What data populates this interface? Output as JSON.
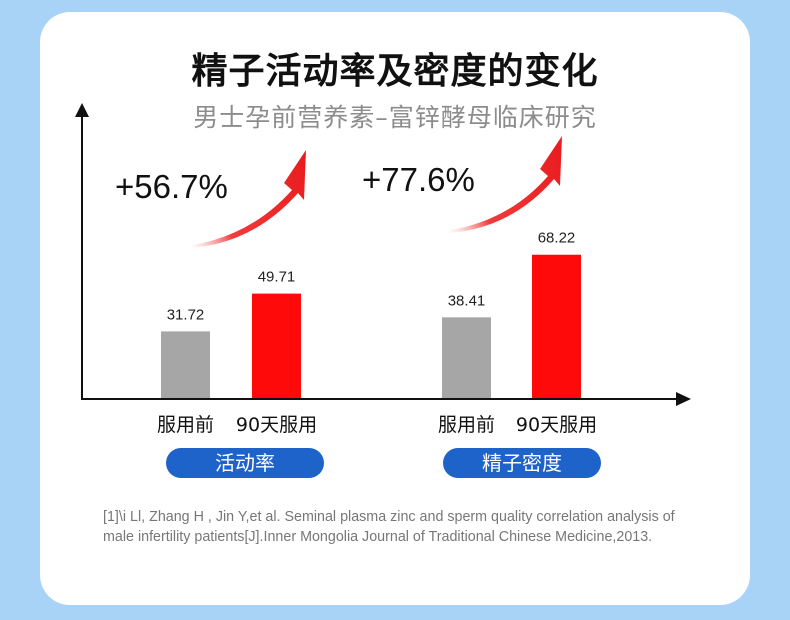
{
  "title": "精子活动率及密度的变化",
  "subtitle": "男士孕前营养素–富锌酵母临床研究",
  "colors": {
    "before": "#a6a6a6",
    "after": "#ff0a0a",
    "pill": "#1e63c9",
    "background": "#a9d2f7",
    "arrow": "#e8191c"
  },
  "chart_data": {
    "type": "bar",
    "groups": [
      {
        "label": "活动率",
        "increase": "+56.7%",
        "bars": [
          {
            "category": "服用前",
            "value": 31.72,
            "label": "31.72"
          },
          {
            "category": "90天服用",
            "value": 49.71,
            "label": "49.71"
          }
        ]
      },
      {
        "label": "精子密度",
        "increase": "+77.6%",
        "bars": [
          {
            "category": "服用前",
            "value": 38.41,
            "label": "38.41"
          },
          {
            "category": "90天服用",
            "value": 68.22,
            "label": "68.22"
          }
        ]
      }
    ]
  },
  "reference": "[1]\\i Ll, Zhang H , Jin Y,et al. Seminal plasma zinc and sperm quality correlation analysis of male infertility patients[J].Inner Mongolia Journal of Traditional Chinese Medicine,2013."
}
